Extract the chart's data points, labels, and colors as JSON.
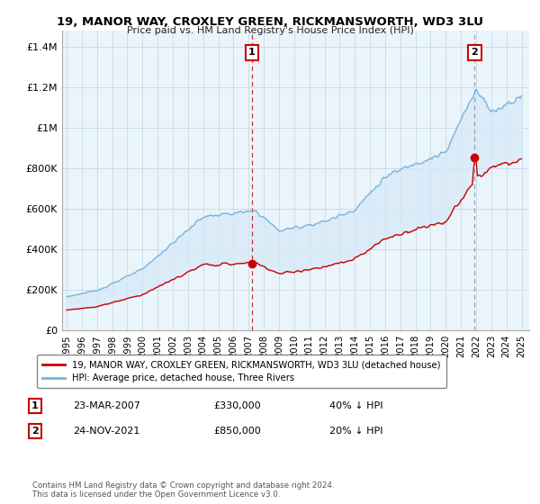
{
  "title": "19, MANOR WAY, CROXLEY GREEN, RICKMANSWORTH, WD3 3LU",
  "subtitle": "Price paid vs. HM Land Registry's House Price Index (HPI)",
  "yticks": [
    0,
    200000,
    400000,
    600000,
    800000,
    1000000,
    1200000,
    1400000
  ],
  "ytick_labels": [
    "£0",
    "£200K",
    "£400K",
    "£600K",
    "£800K",
    "£1M",
    "£1.2M",
    "£1.4M"
  ],
  "marker1": {
    "year": 2007.22,
    "price": 330000,
    "label": "1",
    "date": "23-MAR-2007",
    "amount": "£330,000",
    "hpi": "40% ↓ HPI"
  },
  "marker2": {
    "year": 2021.9,
    "price": 850000,
    "label": "2",
    "date": "24-NOV-2021",
    "amount": "£850,000",
    "hpi": "20% ↓ HPI"
  },
  "hpi_color": "#7ab4d8",
  "price_color": "#cc0000",
  "fill_color": "#d6eaf8",
  "plot_bg_color": "#eaf4fb",
  "legend_label_price": "19, MANOR WAY, CROXLEY GREEN, RICKMANSWORTH, WD3 3LU (detached house)",
  "legend_label_hpi": "HPI: Average price, detached house, Three Rivers",
  "footer": "Contains HM Land Registry data © Crown copyright and database right 2024.\nThis data is licensed under the Open Government Licence v3.0.",
  "background_color": "#ffffff",
  "grid_color": "#c8d8e8"
}
